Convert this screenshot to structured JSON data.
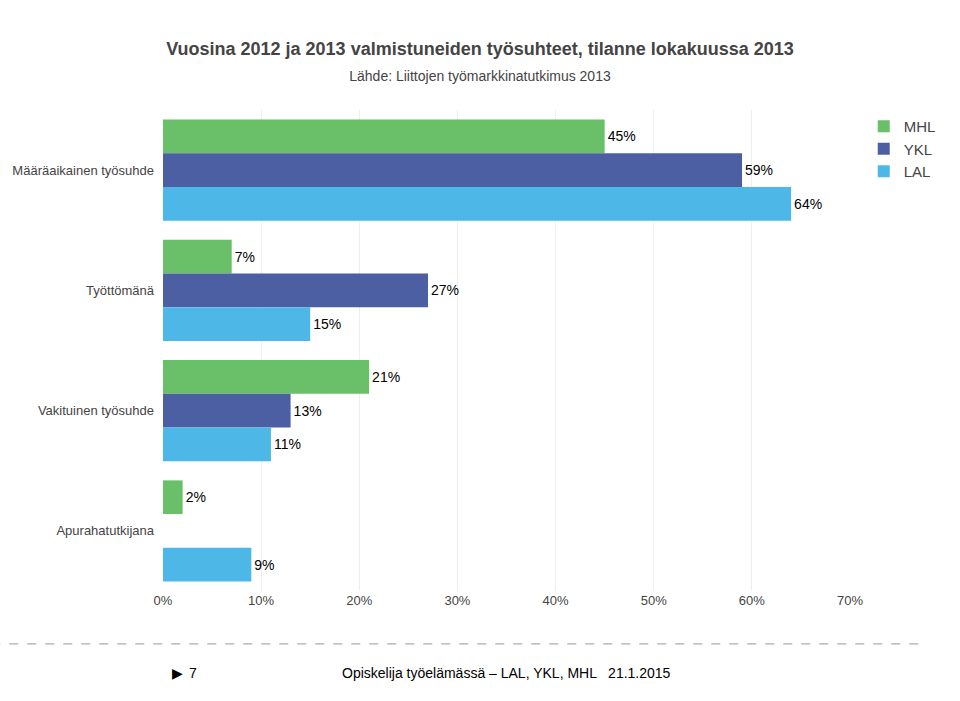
{
  "chart_data": {
    "type": "bar",
    "orientation": "horizontal",
    "title": "Vuosina 2012 ja 2013 valmistuneiden työsuhteet, tilanne lokakuussa 2013",
    "subtitle": "Lähde: Liittojen työmarkkinatutkimus 2013",
    "categories": [
      "Määräaikainen työsuhde",
      "Työttömänä",
      "Vakituinen työsuhde",
      "Apurahatutkijana"
    ],
    "series": [
      {
        "name": "MHL",
        "color": "#6abf69",
        "values": [
          45,
          7,
          21,
          2
        ],
        "value_labels": [
          "45%",
          "7%",
          "21%",
          "2%"
        ]
      },
      {
        "name": "YKL",
        "color": "#4c5fa3",
        "values": [
          59,
          27,
          13,
          0
        ],
        "value_labels": [
          "59%",
          "27%",
          "13%",
          null
        ]
      },
      {
        "name": "LAL",
        "color": "#4db8e8",
        "values": [
          64,
          15,
          11,
          9
        ],
        "value_labels": [
          "64%",
          "15%",
          "11%",
          "9%"
        ]
      }
    ],
    "xlim": [
      0,
      70
    ],
    "xticks": [
      {
        "value": 0,
        "label": "0%"
      },
      {
        "value": 10,
        "label": "10%"
      },
      {
        "value": 20,
        "label": "20%"
      },
      {
        "value": 30,
        "label": "30%"
      },
      {
        "value": 40,
        "label": "40%"
      },
      {
        "value": 50,
        "label": "50%"
      },
      {
        "value": 60,
        "label": "60%"
      },
      {
        "value": 70,
        "label": "70%"
      }
    ],
    "data_labels": true,
    "grid": true,
    "legend": "right",
    "annotations": [
      "▶",
      "7",
      "Opiskelija työelämässä – LAL, YKL, MHL   21.1.2015"
    ]
  }
}
